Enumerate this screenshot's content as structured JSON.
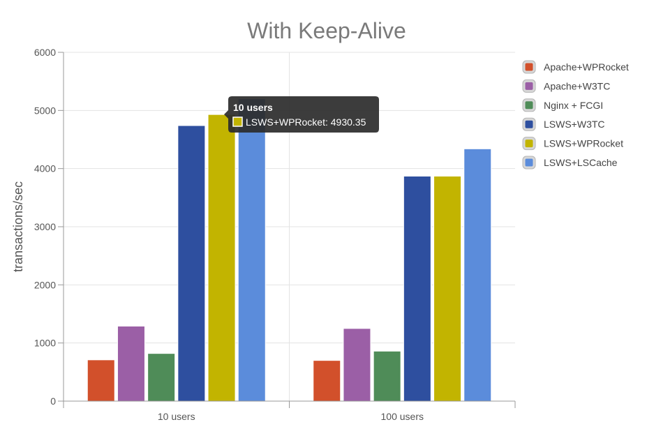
{
  "chart_data": {
    "type": "bar",
    "title": "With Keep-Alive",
    "ylabel": "transactions/sec",
    "xlabel": "",
    "ylim": [
      0,
      6000
    ],
    "yticks": [
      0,
      1000,
      2000,
      3000,
      4000,
      5000,
      6000
    ],
    "grid": true,
    "legend_position": "right",
    "categories": [
      "10 users",
      "100 users"
    ],
    "series": [
      {
        "name": "Apache+WPRocket",
        "color": "#d2502b",
        "values": [
          710,
          700
        ]
      },
      {
        "name": "Apache+W3TC",
        "color": "#9b5fa6",
        "values": [
          1290,
          1250
        ]
      },
      {
        "name": "Nginx + FCGI",
        "color": "#4f8c58",
        "values": [
          820,
          860
        ]
      },
      {
        "name": "LSWS+W3TC",
        "color": "#2e4f9f",
        "values": [
          4740,
          3870
        ]
      },
      {
        "name": "LSWS+WPRocket",
        "color": "#c2b400",
        "values": [
          4930.35,
          3870
        ]
      },
      {
        "name": "LSWS+LSCache",
        "color": "#5b8cdb",
        "values": [
          5200,
          4340
        ]
      }
    ],
    "tooltip": {
      "title": "10 users",
      "series": "LSWS+WPRocket",
      "value": "4930.35",
      "text": "LSWS+WPRocket: 4930.35",
      "color": "#c2b400"
    }
  }
}
